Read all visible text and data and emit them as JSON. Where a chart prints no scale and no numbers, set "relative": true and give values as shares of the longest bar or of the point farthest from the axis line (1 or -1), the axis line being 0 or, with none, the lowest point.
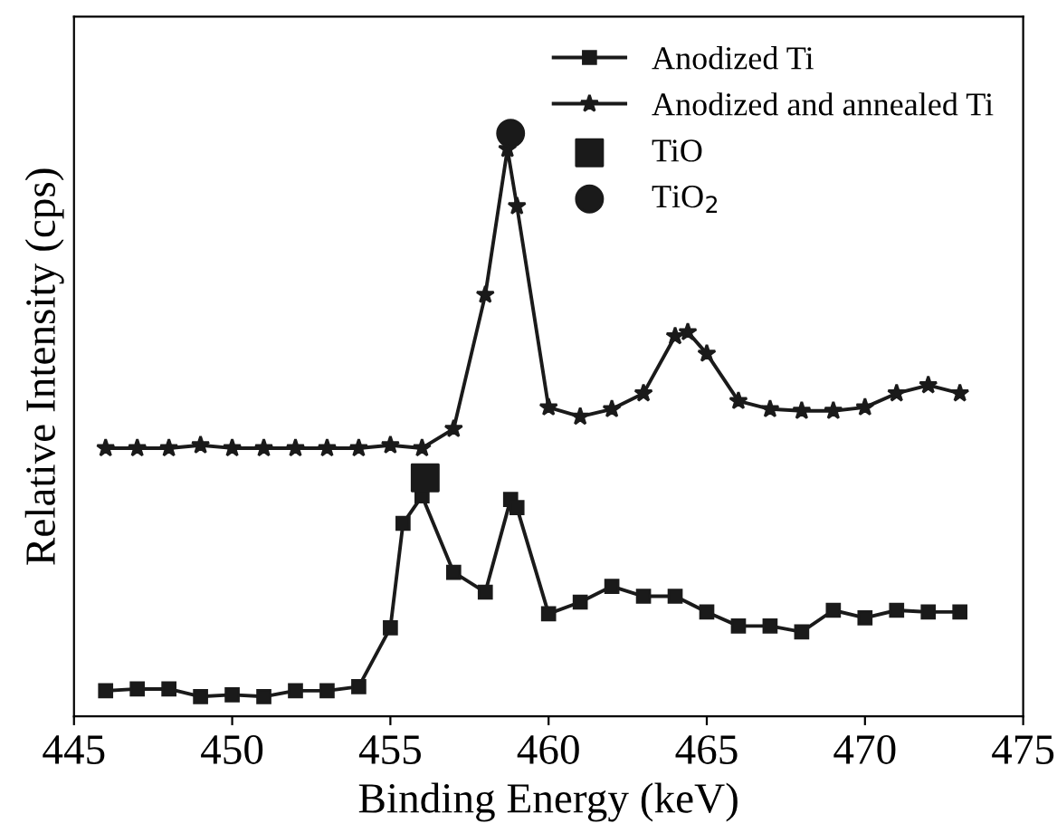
{
  "chart_data": {
    "type": "line",
    "relative": true,
    "xlabel": "Binding Energy (keV)",
    "ylabel": "Relative Intensity (cps)",
    "xlim": [
      445,
      475
    ],
    "xticks": [
      445,
      450,
      455,
      460,
      465,
      470,
      475
    ],
    "legend": "top right",
    "grid": false,
    "line_style": "solid",
    "series": [
      {
        "name": "Anodized Ti",
        "color": "#1a1a1a",
        "marker": "square",
        "x": [
          446,
          447,
          448,
          449,
          450,
          451,
          452,
          453,
          454,
          455,
          455.4,
          456,
          457,
          458,
          458.8,
          459,
          460,
          461,
          462,
          463,
          464,
          465,
          466,
          467,
          468,
          469,
          470,
          471,
          472,
          473
        ],
        "values": [
          0.044,
          0.047,
          0.047,
          0.034,
          0.037,
          0.034,
          0.044,
          0.044,
          0.051,
          0.152,
          0.331,
          0.378,
          0.247,
          0.213,
          0.372,
          0.358,
          0.176,
          0.196,
          0.223,
          0.206,
          0.206,
          0.179,
          0.155,
          0.155,
          0.145,
          0.182,
          0.169,
          0.182,
          0.179,
          0.179
        ]
      },
      {
        "name": "Anodized and annealed Ti",
        "color": "#1a1a1a",
        "marker": "star",
        "x": [
          446,
          447,
          448,
          449,
          450,
          451,
          452,
          453,
          454,
          455,
          456,
          457,
          458,
          458.7,
          459,
          460,
          461,
          462,
          463,
          464,
          464.4,
          465,
          466,
          467,
          468,
          469,
          470,
          471,
          472,
          473
        ],
        "values": [
          0.46,
          0.46,
          0.46,
          0.465,
          0.46,
          0.46,
          0.46,
          0.46,
          0.46,
          0.465,
          0.46,
          0.493,
          0.723,
          0.973,
          0.875,
          0.53,
          0.514,
          0.527,
          0.554,
          0.652,
          0.659,
          0.622,
          0.541,
          0.527,
          0.524,
          0.524,
          0.53,
          0.554,
          0.568,
          0.554
        ]
      },
      {
        "name": "TiO",
        "type": "scatter",
        "color": "#1a1a1a",
        "marker": "square",
        "x": [
          456.1
        ],
        "values": [
          0.409
        ]
      },
      {
        "name": "TiO$_{2}$",
        "type": "scatter",
        "color": "#1a1a1a",
        "marker": "circle",
        "x": [
          458.8
        ],
        "values": [
          1.0
        ]
      }
    ]
  }
}
